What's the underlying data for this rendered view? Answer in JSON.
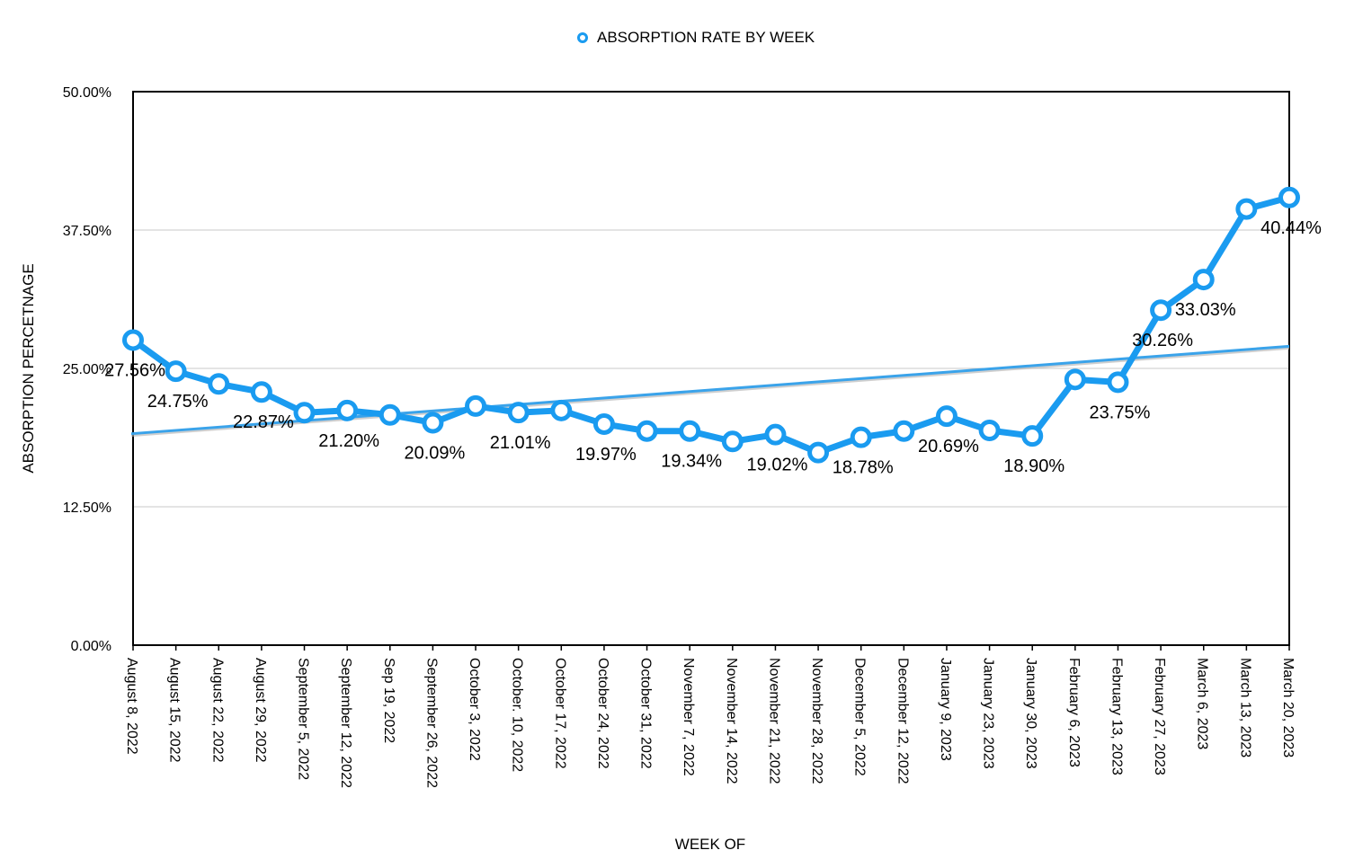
{
  "chart_data": {
    "type": "line",
    "title": "",
    "legend": {
      "label": "ABSORPTION RATE BY WEEK",
      "position": "top-center"
    },
    "xlabel": "WEEK OF",
    "ylabel": "ABSORPTION PERCETNAGE",
    "ylim": [
      0,
      50
    ],
    "yticks": [
      "0.00%",
      "12.50%",
      "25.00%",
      "37.50%",
      "50.00%"
    ],
    "ytick_values": [
      0,
      12.5,
      25,
      37.5,
      50
    ],
    "grid": true,
    "categories": [
      "August 8, 2022",
      "August 15, 2022",
      "August 22, 2022",
      "August 29, 2022",
      "September 5, 2022",
      "September 12, 2022",
      "Sep 19, 2022",
      "September 26, 2022",
      "October 3, 2022",
      "October. 10, 2022",
      "October 17, 2022",
      "October 24, 2022",
      "October 31, 2022",
      "November 7, 2022",
      "November 14, 2022",
      "November 21, 2022",
      "November 28, 2022",
      "December 5, 2022",
      "December 12, 2022",
      "January 9, 2023",
      "January 23, 2023",
      "January 30, 2023",
      "February 6, 2023",
      "February 13, 2023",
      "February 27, 2023",
      "March 6, 2023",
      "March 13, 2023",
      "March 20, 2023"
    ],
    "series": [
      {
        "name": "ABSORPTION RATE BY WEEK",
        "color": "#1a9bf0",
        "values": [
          27.56,
          24.75,
          23.6,
          22.87,
          21.0,
          21.2,
          20.8,
          20.09,
          21.6,
          21.01,
          21.2,
          19.97,
          19.34,
          19.34,
          18.4,
          19.02,
          17.4,
          18.78,
          19.34,
          20.69,
          19.4,
          18.9,
          24.0,
          23.75,
          30.26,
          33.03,
          39.4,
          40.44
        ]
      }
    ],
    "data_labels": [
      {
        "index": 0,
        "text": "27.56%"
      },
      {
        "index": 1,
        "text": "24.75%"
      },
      {
        "index": 3,
        "text": "22.87%"
      },
      {
        "index": 5,
        "text": "21.20%"
      },
      {
        "index": 7,
        "text": "20.09%"
      },
      {
        "index": 9,
        "text": "21.01%"
      },
      {
        "index": 11,
        "text": "19.97%"
      },
      {
        "index": 13,
        "text": "19.34%"
      },
      {
        "index": 15,
        "text": "19.02%"
      },
      {
        "index": 17,
        "text": "18.78%"
      },
      {
        "index": 19,
        "text": "20.69%"
      },
      {
        "index": 21,
        "text": "18.90%"
      },
      {
        "index": 23,
        "text": "23.75%"
      },
      {
        "index": 24,
        "text": "30.26%"
      },
      {
        "index": 25,
        "text": "33.03%"
      },
      {
        "index": 27,
        "text": "40.44%"
      }
    ],
    "trendline": {
      "type": "linear",
      "start": 19.1,
      "end": 27.0,
      "color": "#3aa3ea"
    }
  }
}
